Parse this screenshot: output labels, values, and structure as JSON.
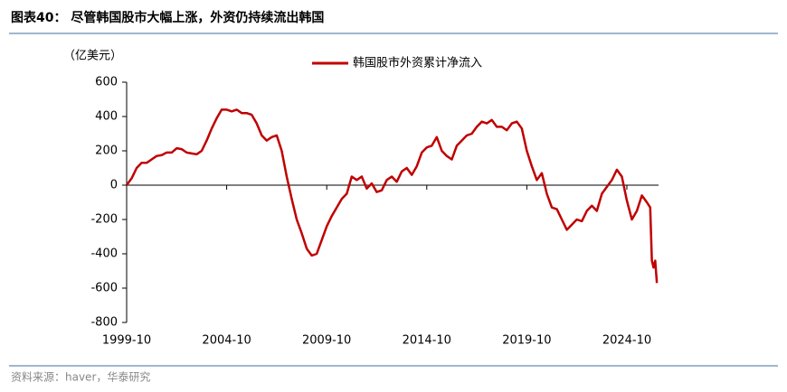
{
  "chart_data": {
    "type": "line",
    "title": "图表40：  尽管韩国股市大幅上涨，外资仍持续流出韩国",
    "y_axis_label": "（亿美元）",
    "source": "资料来源：haver，华泰研究",
    "x": [
      "1999-10",
      "2000-01",
      "2000-04",
      "2000-07",
      "2000-10",
      "2001-01",
      "2001-04",
      "2001-07",
      "2001-10",
      "2002-01",
      "2002-04",
      "2002-07",
      "2002-10",
      "2003-01",
      "2003-04",
      "2003-07",
      "2003-10",
      "2004-01",
      "2004-04",
      "2004-07",
      "2004-10",
      "2005-01",
      "2005-04",
      "2005-07",
      "2005-10",
      "2006-01",
      "2006-04",
      "2006-07",
      "2006-10",
      "2007-01",
      "2007-04",
      "2007-07",
      "2007-10",
      "2008-01",
      "2008-04",
      "2008-07",
      "2008-10",
      "2009-01",
      "2009-04",
      "2009-07",
      "2009-10",
      "2010-01",
      "2010-04",
      "2010-07",
      "2010-10",
      "2011-01",
      "2011-04",
      "2011-07",
      "2011-10",
      "2012-01",
      "2012-04",
      "2012-07",
      "2012-10",
      "2013-01",
      "2013-04",
      "2013-07",
      "2013-10",
      "2014-01",
      "2014-04",
      "2014-07",
      "2014-10",
      "2015-01",
      "2015-04",
      "2015-07",
      "2015-10",
      "2016-01",
      "2016-04",
      "2016-07",
      "2016-10",
      "2017-01",
      "2017-04",
      "2017-07",
      "2017-10",
      "2018-01",
      "2018-04",
      "2018-07",
      "2018-10",
      "2019-01",
      "2019-04",
      "2019-07",
      "2019-10",
      "2020-01",
      "2020-04",
      "2020-07",
      "2020-10",
      "2021-01",
      "2021-04",
      "2021-07",
      "2021-10",
      "2022-01",
      "2022-04",
      "2022-07",
      "2022-10",
      "2023-01",
      "2023-04",
      "2023-07",
      "2023-10",
      "2024-01",
      "2024-04",
      "2024-07",
      "2024-10",
      "2025-01",
      "2025-04",
      "2025-07",
      "2025-10",
      "2025-12",
      "2026-01",
      "2026-02",
      "2026-03",
      "2026-04"
    ],
    "series": [
      {
        "name": "韩国股市外资累计净流入",
        "color": "#c00000",
        "values": [
          0,
          40,
          100,
          130,
          130,
          150,
          170,
          175,
          190,
          190,
          215,
          210,
          190,
          185,
          180,
          200,
          260,
          330,
          390,
          440,
          440,
          430,
          440,
          420,
          420,
          410,
          360,
          290,
          260,
          280,
          290,
          200,
          50,
          -80,
          -200,
          -280,
          -370,
          -410,
          -400,
          -320,
          -240,
          -180,
          -130,
          -80,
          -50,
          50,
          30,
          50,
          -20,
          10,
          -40,
          -30,
          30,
          50,
          20,
          80,
          100,
          60,
          110,
          190,
          220,
          230,
          280,
          200,
          170,
          150,
          230,
          260,
          290,
          300,
          340,
          370,
          360,
          380,
          340,
          340,
          320,
          360,
          370,
          330,
          200,
          110,
          30,
          70,
          -50,
          -130,
          -140,
          -200,
          -260,
          -230,
          -200,
          -210,
          -150,
          -120,
          -150,
          -50,
          -10,
          30,
          90,
          50,
          -90,
          -200,
          -150,
          -60,
          -100,
          -130,
          -440,
          -480,
          -440,
          -570
        ]
      }
    ],
    "xlim": [
      "1999-10",
      "2026-05"
    ],
    "xticks": [
      "1999-10",
      "2004-10",
      "2009-10",
      "2014-10",
      "2019-10",
      "2024-10"
    ],
    "ylim": [
      -800,
      600
    ],
    "yticks": [
      -800,
      -600,
      -400,
      -200,
      0,
      200,
      400,
      600
    ],
    "legend": "top"
  }
}
